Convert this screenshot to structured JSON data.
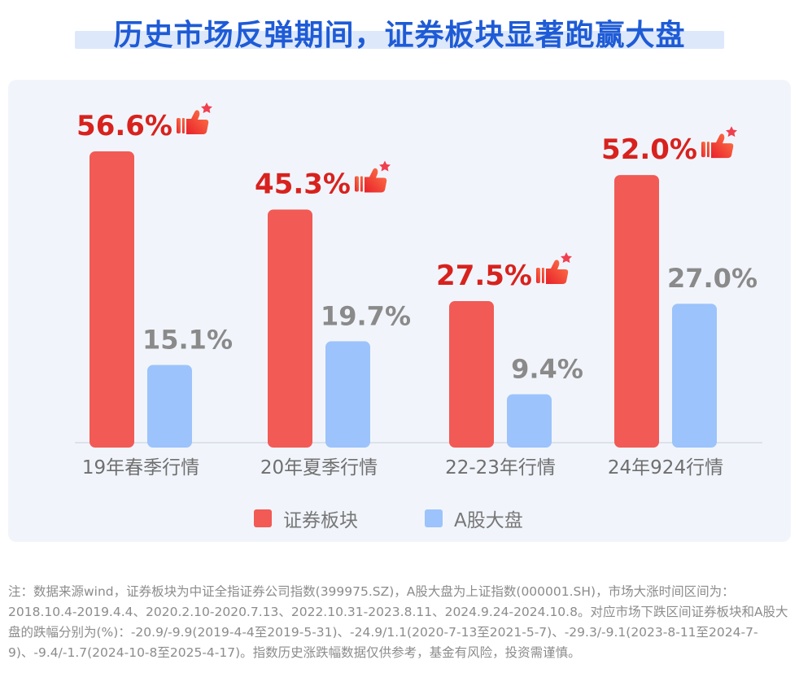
{
  "page": {
    "title": "历史市场反弹期间，证券板块显著跑赢大盘",
    "note": "注：数据来源wind，证券板块为中证全指证券公司指数(399975.SZ)，A股大盘为上证指数(000001.SH)，市场大涨时间区间为：2018.10.4-2019.4.4、2020.2.10-2020.7.13、2022.10.31-2023.8.11、2024.9.24-2024.10.8。对应市场下跌区间证券板块和A股大盘的跌幅分别为(%)：-20.9/-9.9(2019-4-4至2019-5-31)、-24.9/1.1(2020-7-13至2021-5-7)、-29.3/-9.1(2023-8-11至2024-7-9)、-9.4/-1.7(2024-10-8至2025-4-17)。指数历史涨跌幅数据仅供参考，基金有风险，投资需谨慎。"
  },
  "chart_data": {
    "type": "bar",
    "title": "",
    "xlabel": "",
    "ylabel": "",
    "ylim": [
      0,
      60
    ],
    "grid": false,
    "legend_position": "bottom",
    "categories": [
      "19年春季行情",
      "20年夏季行情",
      "22-23年行情",
      "24年924行情"
    ],
    "series": [
      {
        "name": "证券板块",
        "color": "#f25a55",
        "values": [
          56.6,
          45.3,
          27.5,
          52.0
        ],
        "labels": [
          "56.6%",
          "45.3%",
          "27.5%",
          "52.0%"
        ],
        "label_color": "#d8221e"
      },
      {
        "name": "A股大盘",
        "color": "#9cc3fb",
        "values": [
          15.1,
          19.7,
          9.4,
          27.0
        ],
        "labels": [
          "15.1%",
          "19.7%",
          "9.4%",
          "27.0%"
        ],
        "label_color": "#8a8a8a"
      }
    ],
    "icons": [
      "thumbs-up-icon"
    ]
  }
}
